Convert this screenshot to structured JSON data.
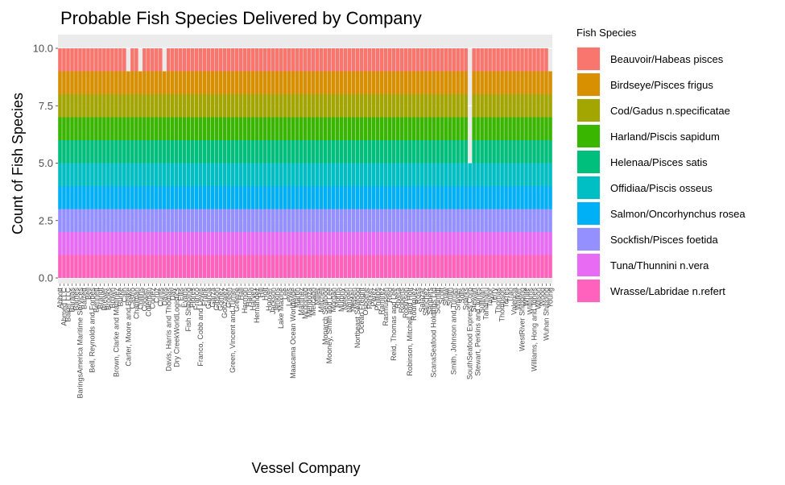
{
  "chart_data": {
    "type": "bar",
    "stacked": true,
    "title": "Probable Fish Species Delivered by Company",
    "xlabel": "Vessel Company",
    "ylabel": "Count of Fish Species",
    "ylim": [
      0,
      10.5
    ],
    "yticks": [
      "0.0",
      "2.5",
      "5.0",
      "7.5",
      "10.0"
    ],
    "grid": true,
    "legend_position": "right",
    "legend_title": "Fish Species",
    "categories": [
      "Abbott",
      "Ahmed LLC",
      "Baker LLC",
      "Barajas",
      "Barnes",
      "BaringsAmerica Maritime Services",
      "Barrett",
      "Bell",
      "Bell, Reynolds and Forbes",
      "Bennett",
      "Brandt",
      "Brewer",
      "Brooks",
      "Brown",
      "Brown, Clarke and Martinez",
      "Burke",
      "Cain",
      "Carter, Moore and Blake",
      "Castro",
      "Chapman",
      "Collins",
      "Cooper",
      "Coleman",
      "Cortez",
      "Cruz",
      "Curtis",
      "Davis",
      "Davis, Harris and Thomas",
      "Day",
      "Dry CreekWorldLogistics",
      "Ellis",
      "Evans",
      "Fish Shipping",
      "Flores",
      "Franco",
      "Franco, Cobb and Lewis",
      "Frank",
      "Garcia",
      "Garza",
      "Gibson",
      "Gomez",
      "Gonzalez",
      "Green",
      "Green, Vincent and Turner",
      "Greene",
      "Hall",
      "Harmon",
      "Harris",
      "Harvey",
      "Hernandez",
      "Hill",
      "Holt",
      "Hoover",
      "Jackson",
      "Jenkins",
      "Lake Maxine",
      "Lee",
      "Lewis",
      "Maacama Ocean Worldwide",
      "Martin",
      "Martinez",
      "Mcdonald",
      "Mendoza",
      "Mercado",
      "Miller",
      "Mitchell",
      "Monarch Seafood",
      "Mooney, Smith and Lee",
      "Morgan",
      "Morris",
      "Murphy",
      "Nelson",
      "Nguyen",
      "Nielsen",
      "Northeast Seafood",
      "Ocean Freight",
      "Osborne",
      "Parker",
      "Perez",
      "Phillips",
      "Ramirez",
      "Rasmussen",
      "Reid",
      "Reid, Thomas and Lee",
      "Rivera",
      "Roberts",
      "Robinson",
      "Robinson, Mitchell and Holt",
      "Rodriguez",
      "Ross",
      "Salazar",
      "Sanchez",
      "Sanders",
      "ScanaSeafood Holdings Ltd",
      "Schmidt",
      "Scott",
      "Shaw",
      "Smith",
      "Smith, Johnson and Turner",
      "Snyder",
      "Solis",
      "Sparks",
      "SouthSeafood Express Corp",
      "Stewart",
      "Stewart, Perkins and Jones",
      "Sullivan",
      "Tanamaru",
      "Taylor",
      "Terry",
      "Thomas",
      "Thompson",
      "Torres",
      "Tran",
      "Valencia",
      "Walker",
      "WestRiver Shipping",
      "White",
      "Williams",
      "Williams, Hong and Jones",
      "Wilson",
      "Wood",
      "Wuhan Shipping",
      "Young"
    ],
    "category_labels": [
      "Abbott",
      "Ahmed LLC",
      "Baker LLC",
      "Barajas",
      "Barnes",
      "BaringsAmerica Maritime Services",
      "Barrett",
      "Bell",
      "Bell, Reynolds and Forbes",
      "Bennett",
      "Brandt",
      "Brewer",
      "Brooks",
      "Brown",
      "Brown, Clarke and Martinez",
      "Burke",
      "Cain",
      "Carter, Moore and Blake",
      "Castro",
      "Chapman",
      "Collins",
      "Cooper",
      "Coleman",
      "Cortez",
      "Cruz",
      "Curtis",
      "Davis",
      "Davis, Harris and Thomas",
      "Day",
      "Dry CreekWorldLogistics",
      "Ellis",
      "Evans",
      "Fish Shipping",
      "Flores",
      "Franco",
      "Franco, Cobb and Lewis",
      "Frank",
      "Garcia",
      "Garza",
      "Gibson",
      "Gomez",
      "Gonzalez",
      "Green",
      "Green, Vincent and Turner",
      "Greene",
      "Hall",
      "Harmon",
      "Harris",
      "Harvey",
      "Hernandez",
      "Hill",
      "Holt",
      "Hoover",
      "Jackson",
      "Jenkins",
      "Lake Maxine",
      "Lee",
      "Lewis",
      "Maacama Ocean Worldwide",
      "Martin",
      "Martinez",
      "Mcdonald",
      "Mendoza",
      "Mercado",
      "Miller",
      "Mitchell",
      "Monarch Seafood",
      "Mooney, Smith and Lee",
      "Morgan",
      "Morris",
      "Murphy",
      "Nelson",
      "Nguyen",
      "Nielsen",
      "Northeast Seafood",
      "Ocean Freight",
      "Osborne",
      "Parker",
      "Perez",
      "Phillips",
      "Ramirez",
      "Rasmussen",
      "Reid",
      "Reid, Thomas and Lee",
      "Rivera",
      "Roberts",
      "Robinson",
      "Robinson, Mitchell and Holt",
      "Rodriguez",
      "Ross",
      "Salazar",
      "Sanchez",
      "Sanders",
      "ScanaSeafood Holdings Ltd",
      "Schmidt",
      "Scott",
      "Shaw",
      "Smith",
      "Smith, Johnson and Turner",
      "Snyder",
      "Solis",
      "Sparks",
      "SouthSeafood Express Corp",
      "Stewart",
      "Stewart, Perkins and Jones",
      "Sullivan",
      "Tanamaru",
      "Taylor",
      "Terry",
      "Thomas",
      "Thompson",
      "Torres",
      "Tran",
      "Valencia",
      "Walker",
      "WestRiver Shipping",
      "White",
      "Williams",
      "Williams, Hong and Jones",
      "Wilson",
      "Wood",
      "Wuhan Shipping",
      "Young"
    ],
    "default_total": 10,
    "special_totals": {
      "Carter, Moore and Blake": 9,
      "Collins": 9,
      "Davis": 9,
      "SouthSeafood Express Corp": 5,
      "Young": 9
    },
    "series": [
      {
        "name": "Beauvoir/Habeas pisces",
        "color": "#F8766D"
      },
      {
        "name": "Birdseye/Pisces frigus",
        "color": "#D89000"
      },
      {
        "name": "Cod/Gadus n.specificatae",
        "color": "#A3A500"
      },
      {
        "name": "Harland/Piscis sapidum",
        "color": "#39B600"
      },
      {
        "name": "Helenaa/Pisces satis",
        "color": "#00BF7D"
      },
      {
        "name": "Offidiaa/Piscis osseus",
        "color": "#00BFC4"
      },
      {
        "name": "Salmon/Oncorhynchus rosea",
        "color": "#00B0F6"
      },
      {
        "name": "Sockfish/Pisces foetida",
        "color": "#9590FF"
      },
      {
        "name": "Tuna/Thunnini n.vera",
        "color": "#E76BF3"
      },
      {
        "name": "Wrasse/Labridae n.refert",
        "color": "#FF62BC"
      }
    ]
  }
}
